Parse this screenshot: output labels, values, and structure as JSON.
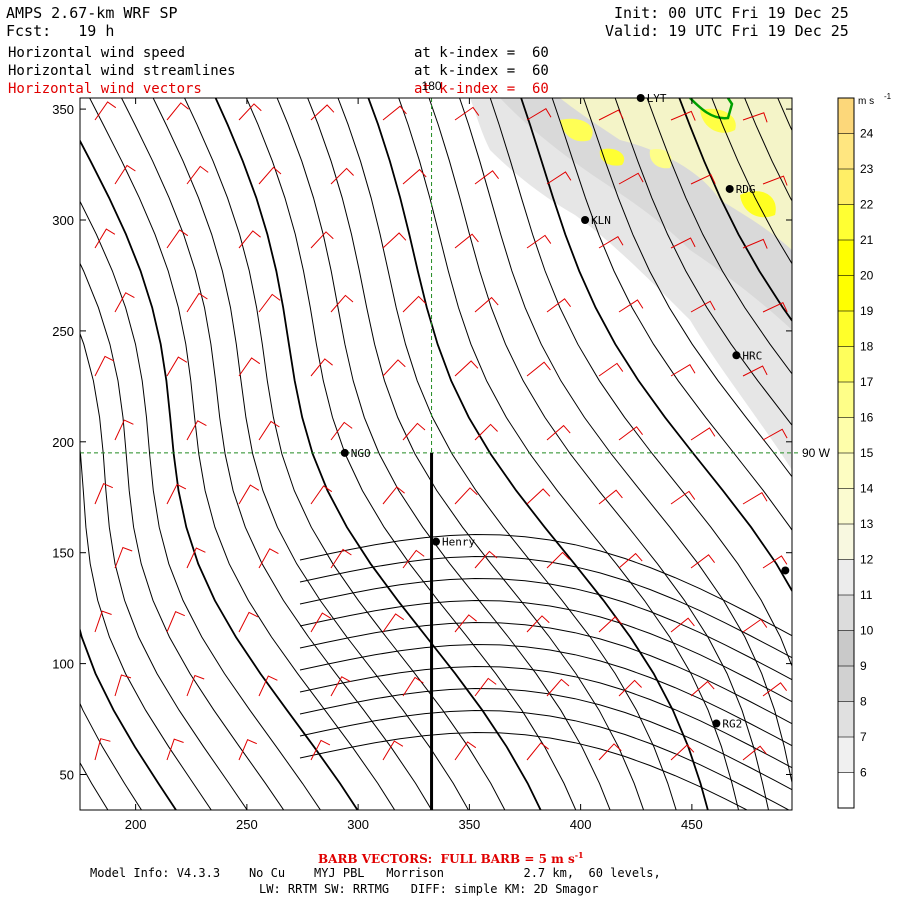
{
  "header": {
    "model_title": "AMPS 2.67-km WRF SP",
    "forecast": "Fcst:   19 h",
    "init": "Init: 00 UTC Fri 19 Dec 25",
    "valid": "Valid: 19 UTC Fri 19 Dec 25",
    "fields": [
      {
        "name": "Horizontal wind speed",
        "level": "at k-index =  60",
        "color": "#000000"
      },
      {
        "name": "Horizontal wind streamlines",
        "level": "at k-index =  60",
        "color": "#000000"
      },
      {
        "name": "Horizontal wind vectors",
        "level": "at k-index =  60",
        "color": "#e00000"
      }
    ]
  },
  "chart_data": {
    "type": "map",
    "x_ticks": [
      200,
      250,
      300,
      350,
      400,
      450
    ],
    "y_ticks": [
      50,
      100,
      150,
      200,
      250,
      300,
      350
    ],
    "xlim": [
      175,
      495
    ],
    "ylim": [
      34,
      355
    ],
    "reference_lines": {
      "meridian_label": "90 W",
      "parallel_label": "180",
      "vertical_x": 333,
      "horizontal_y": 195
    },
    "cross_section": {
      "x": 333,
      "y0": 34,
      "y1": 195
    },
    "stations": [
      {
        "name": "LYT",
        "x": 427,
        "y": 355
      },
      {
        "name": "RDG",
        "x": 467,
        "y": 314
      },
      {
        "name": "KLN",
        "x": 402,
        "y": 300
      },
      {
        "name": "HRC",
        "x": 470,
        "y": 239
      },
      {
        "name": "NGO",
        "x": 294,
        "y": 195
      },
      {
        "name": "Henry",
        "x": 335,
        "y": 155
      },
      {
        "name": "RG2",
        "x": 461,
        "y": 73
      },
      {
        "name": "",
        "x": 492,
        "y": 142
      }
    ],
    "colorbar": {
      "unit": "m s",
      "unit_exp": "-1",
      "levels": [
        6,
        7,
        8,
        9,
        10,
        11,
        12,
        13,
        14,
        15,
        16,
        17,
        18,
        19,
        20,
        21,
        22,
        23,
        24
      ],
      "bin_colors": [
        "#ffffff",
        "#f0f0f0",
        "#e0e0e0",
        "#d1d1d1",
        "#c9c9c9",
        "#dcdcdc",
        "#ececec",
        "#f8f8e0",
        "#fbfbd0",
        "#fdfdc2",
        "#fefeaa",
        "#fefe88",
        "#fefe5c",
        "#ffff2a",
        "#ffff00",
        "#ffff00",
        "#ffff33",
        "#ffee66",
        "#ffe680",
        "#fcd77a"
      ]
    },
    "colors": {
      "streamlines": "#000000",
      "barbs": "#e00000",
      "reference": "#228b22",
      "coast": "#00a000"
    }
  },
  "footer": {
    "barb_note": "BARB VECTORS:  FULL BARB = 5 m s",
    "barb_note_exp": "-1",
    "line1": "Model Info: V4.3.3    No Cu    MYJ PBL   Morrison           2.7 km,  60 levels,",
    "line2": "LW: RRTM SW: RRTMG   DIFF: simple KM: 2D Smagor"
  }
}
